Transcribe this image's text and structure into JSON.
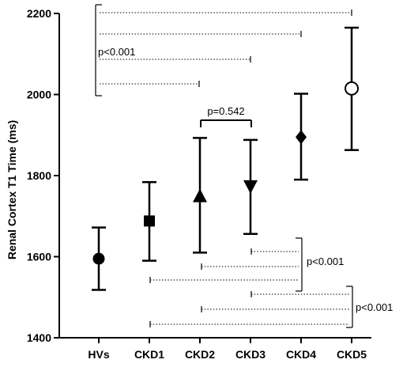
{
  "chart_data": {
    "type": "scatter",
    "ylabel": "Renal Cortex T1 Time (ms)",
    "xlabel": "",
    "ylim": [
      1400,
      2200
    ],
    "yticks": [
      1400,
      1600,
      1800,
      2000,
      2200
    ],
    "categories": [
      "HVs",
      "CKD1",
      "CKD2",
      "CKD3",
      "CKD4",
      "CKD5"
    ],
    "markers": [
      "filled-circle",
      "filled-square",
      "filled-triangle-up",
      "filled-triangle-down",
      "filled-diamond",
      "open-circle"
    ],
    "points": [
      {
        "category": "HVs",
        "mean": 1595,
        "upper": 1672,
        "lower": 1518
      },
      {
        "category": "CKD1",
        "mean": 1688,
        "upper": 1784,
        "lower": 1590
      },
      {
        "category": "CKD2",
        "mean": 1748,
        "upper": 1893,
        "lower": 1610
      },
      {
        "category": "CKD3",
        "mean": 1775,
        "upper": 1888,
        "lower": 1656
      },
      {
        "category": "CKD4",
        "mean": 1895,
        "upper": 2002,
        "lower": 1790
      },
      {
        "category": "CKD5",
        "mean": 2015,
        "upper": 2165,
        "lower": 1863
      }
    ],
    "annotations": [
      {
        "text": "p<0.001",
        "group": "HVs vs CKD1–CKD5"
      },
      {
        "text": "p=0.542",
        "group": "CKD2 vs CKD3"
      },
      {
        "text": "p<0.001",
        "group": "CKD4 vs CKD1–CKD3"
      },
      {
        "text": "p<0.001",
        "group": "CKD5 vs CKD1–CKD3"
      }
    ]
  }
}
